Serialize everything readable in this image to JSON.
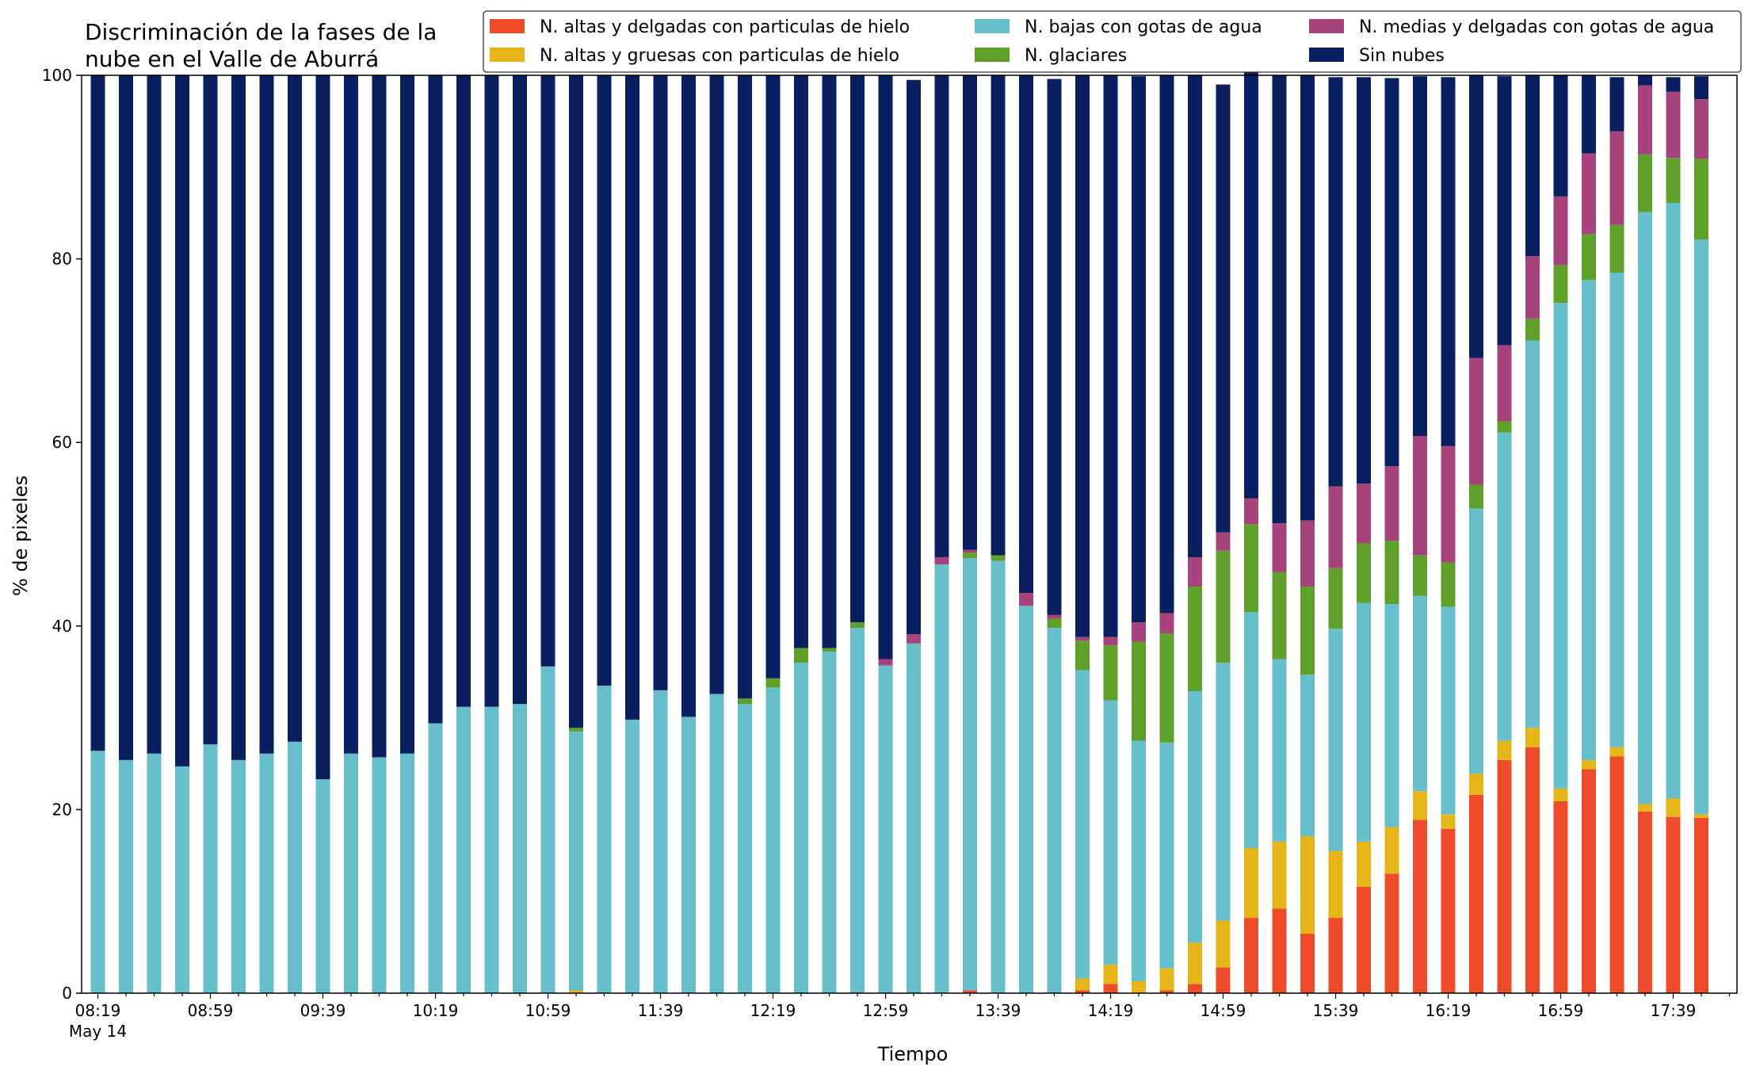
{
  "chart_data": {
    "type": "bar",
    "stacked": true,
    "title": "Discriminación de la fases de la\nnube en el Valle de Aburrá",
    "xlabel": "Tiempo",
    "ylabel": "% de pixeles",
    "ylim": [
      0,
      100
    ],
    "yticks": [
      0,
      20,
      40,
      60,
      80,
      100
    ],
    "xtick_labels": [
      "08:19",
      "08:59",
      "09:39",
      "10:19",
      "10:59",
      "11:39",
      "12:19",
      "12:59",
      "13:39",
      "14:19",
      "14:59",
      "15:39",
      "16:19",
      "16:59",
      "17:39"
    ],
    "xtick_sublabel": "May 14",
    "legend_placement": "top-right",
    "categories": [
      "08:19",
      "08:29",
      "08:39",
      "08:49",
      "08:59",
      "09:09",
      "09:19",
      "09:29",
      "09:39",
      "09:49",
      "09:59",
      "10:09",
      "10:19",
      "10:29",
      "10:39",
      "10:49",
      "10:59",
      "11:09",
      "11:19",
      "11:29",
      "11:39",
      "11:49",
      "11:59",
      "12:09",
      "12:19",
      "12:29",
      "12:39",
      "12:49",
      "12:59",
      "13:09",
      "13:19",
      "13:29",
      "13:39",
      "13:49",
      "13:59",
      "14:09",
      "14:19",
      "14:29",
      "14:39",
      "14:49",
      "14:59",
      "15:09",
      "15:19",
      "15:29",
      "15:39",
      "15:49",
      "15:59",
      "16:09",
      "16:19",
      "16:29",
      "16:39",
      "16:49",
      "16:59",
      "17:09",
      "17:19",
      "17:29",
      "17:39",
      "17:49"
    ],
    "series": [
      {
        "name": "N. altas y delgadas con particulas de hielo",
        "color": "#ee4b2b",
        "values": [
          0,
          0,
          0,
          0,
          0,
          0,
          0,
          0,
          0,
          0,
          0,
          0,
          0,
          0,
          0,
          0,
          0,
          0,
          0,
          0,
          0,
          0,
          0,
          0,
          0,
          0,
          0,
          0,
          0,
          0,
          0,
          0.3,
          0,
          0,
          0,
          0.3,
          1,
          0,
          0.3,
          1,
          2.8,
          8.2,
          9.2,
          6.5,
          8.2,
          11.6,
          13,
          18.9,
          17.9,
          21.6,
          25.4,
          26.8,
          20.9,
          24.4,
          25.8,
          19.8,
          19.2,
          19.1
        ]
      },
      {
        "name": "N. altas y gruesas con particulas de hielo",
        "color": "#e6b619",
        "values": [
          0,
          0,
          0,
          0,
          0,
          0,
          0,
          0,
          0,
          0,
          0,
          0,
          0,
          0,
          0,
          0,
          0,
          0.3,
          0,
          0,
          0,
          0,
          0,
          0,
          0,
          0,
          0,
          0,
          0,
          0,
          0,
          0,
          0,
          0,
          0,
          1.3,
          2.1,
          1.3,
          2.4,
          4.5,
          5.1,
          7.6,
          7.3,
          10.6,
          7.3,
          4.9,
          5.1,
          3.1,
          1.6,
          2.3,
          2.1,
          2.1,
          1.4,
          1,
          1,
          0.8,
          2,
          0.4
        ]
      },
      {
        "name": "N. bajas con gotas de agua",
        "color": "#66bfcb",
        "values": [
          26.4,
          25.4,
          26.1,
          24.7,
          27.1,
          25.4,
          26.1,
          27.4,
          23.3,
          26.1,
          25.7,
          26.1,
          29.4,
          31.2,
          31.2,
          31.5,
          35.6,
          28.2,
          33.5,
          29.8,
          33,
          30.1,
          32.6,
          31.5,
          33.3,
          36,
          37.2,
          39.8,
          35.7,
          38.1,
          46.7,
          47.1,
          47.1,
          42.2,
          39.8,
          33.6,
          28.8,
          26.2,
          24.6,
          27.4,
          28.1,
          25.7,
          19.9,
          17.6,
          24.2,
          26,
          24.3,
          21.3,
          22.6,
          28.9,
          33.6,
          42.2,
          52.9,
          52.3,
          51.7,
          64.5,
          64.9,
          62.6
        ]
      },
      {
        "name": "N. glaciares",
        "color": "#5fa02a",
        "values": [
          0,
          0,
          0,
          0,
          0,
          0,
          0,
          0,
          0,
          0,
          0,
          0,
          0,
          0,
          0,
          0,
          0,
          0.4,
          0,
          0,
          0,
          0,
          0,
          0.6,
          1,
          1.6,
          0.4,
          0.6,
          0,
          0,
          0,
          0.6,
          0.6,
          0,
          1,
          3.2,
          6,
          10.8,
          11.9,
          11.4,
          12.2,
          9.6,
          9.5,
          9.6,
          6.6,
          6.5,
          6.9,
          4.4,
          4.8,
          2.6,
          1.2,
          2.4,
          4.1,
          5,
          5.2,
          6.3,
          4.9,
          8.8
        ]
      },
      {
        "name": "N. medias y delgadas con gotas de agua",
        "color": "#a6437a",
        "values": [
          0,
          0,
          0,
          0,
          0,
          0,
          0,
          0,
          0,
          0,
          0,
          0,
          0,
          0,
          0,
          0,
          0,
          0,
          0,
          0,
          0,
          0,
          0,
          0,
          0,
          0,
          0,
          0,
          0.7,
          1,
          0.8,
          0.3,
          0,
          1.4,
          0.4,
          0.4,
          0.9,
          2.1,
          2.2,
          3.2,
          2,
          2.8,
          5.3,
          7.2,
          8.9,
          6.5,
          8.1,
          13,
          12.7,
          13.8,
          8.3,
          6.8,
          7.5,
          8.8,
          10.2,
          7.5,
          7.2,
          6.5
        ]
      },
      {
        "name": "Sin nubes",
        "color": "#0a1f60",
        "values": [
          73.6,
          74.6,
          73.9,
          75.3,
          72.9,
          74.6,
          73.9,
          72.6,
          76.7,
          73.9,
          74.3,
          73.9,
          70.6,
          68.8,
          68.8,
          68.5,
          64.4,
          71.1,
          66.5,
          70.2,
          67,
          69.9,
          67.4,
          67.9,
          65.7,
          62.4,
          62.4,
          59.6,
          63.6,
          60.4,
          52.5,
          51.7,
          52.3,
          56.4,
          58.4,
          61.2,
          61.2,
          59.5,
          58.6,
          52.5,
          48.8,
          46.7,
          48.8,
          48.5,
          44.6,
          44.3,
          42.3,
          39.2,
          40.2,
          30.8,
          29.3,
          19.7,
          13.2,
          8.5,
          5.9,
          1.1,
          1.6,
          2.5
        ]
      }
    ]
  }
}
